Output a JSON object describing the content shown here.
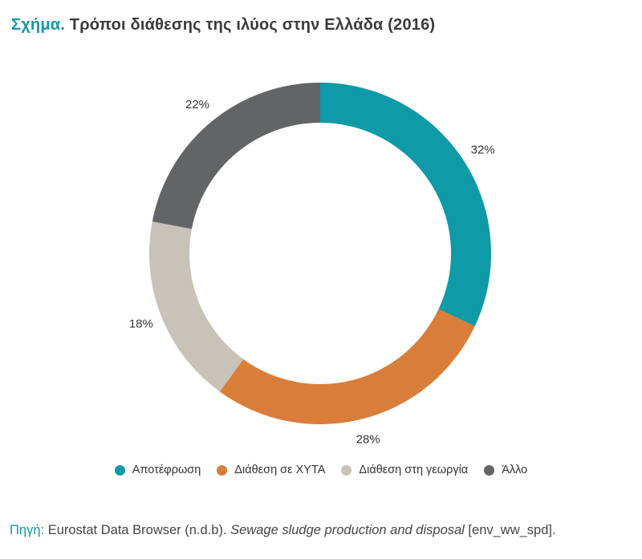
{
  "header": {
    "title_prefix": "Σχήμα.",
    "title_text": "Τρόποι διάθεσης της ιλύος στην Ελλάδα (2016)"
  },
  "chart_data": {
    "type": "pie",
    "donut": true,
    "title": "Τρόποι διάθεσης της ιλύος στην Ελλάδα (2016)",
    "categories": [
      "Αποτέφρωση",
      "Διάθεση σε ΧΥΤΑ",
      "Διάθεση στη γεωργία",
      "Άλλο"
    ],
    "values": [
      32,
      28,
      18,
      22
    ],
    "labels": [
      "32%",
      "28%",
      "18%",
      "22%"
    ],
    "colors": [
      "#0f9aa8",
      "#d97e3a",
      "#c9c2b8",
      "#636466"
    ],
    "legend_position": "bottom"
  },
  "legend": {
    "items": [
      {
        "label": "Αποτέφρωση",
        "color": "#0f9aa8"
      },
      {
        "label": "Διάθεση σε ΧΥΤΑ",
        "color": "#d97e3a"
      },
      {
        "label": "Διάθεση στη γεωργία",
        "color": "#c9c2b8"
      },
      {
        "label": "Άλλο",
        "color": "#636466"
      }
    ]
  },
  "source": {
    "label": "Πηγή:",
    "text_plain": " Eurostat Data Browser (n.d.b). ",
    "text_italic": "Sewage sludge production and disposal",
    "text_end": " [env_ww_spd]."
  },
  "colors": {
    "accent": "#1597a3"
  }
}
